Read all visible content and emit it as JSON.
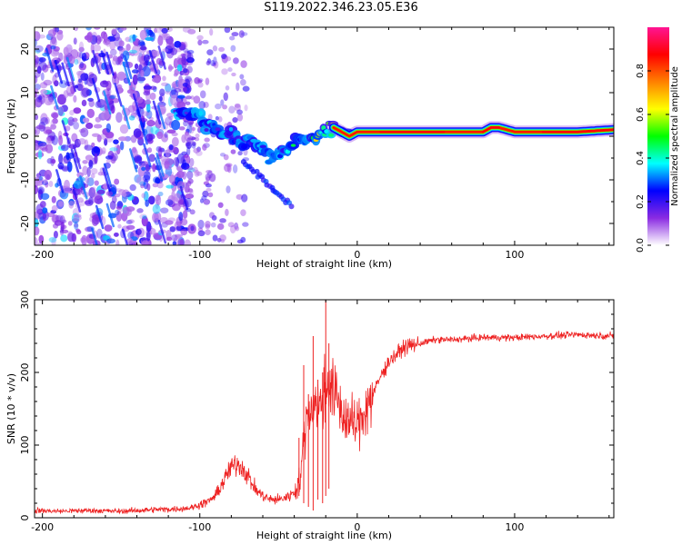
{
  "title": "S119.2022.346.23.05.E36",
  "colors": {
    "snr_line": "#ee2222",
    "rainbow": [
      "#ffffff",
      "#8a2be2",
      "#0000ff",
      "#00ffff",
      "#00ff00",
      "#ffff00",
      "#ff8000",
      "#ff0000",
      "#ff1493"
    ]
  },
  "chart_data": [
    {
      "type": "heatmap",
      "xlabel": "Height of straight line (km)",
      "ylabel": "Frequency (Hz)",
      "xlim": [
        -205,
        163
      ],
      "ylim": [
        -25,
        25
      ],
      "xticks": [
        -200,
        -100,
        0,
        100
      ],
      "xtick_labels": [
        "-200",
        "-100",
        "0",
        "100"
      ],
      "yticks": [
        -20,
        -10,
        0,
        10,
        20
      ],
      "ytick_labels": [
        "-20",
        "-10",
        "0",
        "10",
        "20"
      ],
      "colorbar": {
        "label": "Normalized spectral amplitude",
        "range": [
          0,
          1
        ],
        "ticks": [
          0.0,
          0.2,
          0.4,
          0.6,
          0.8
        ],
        "tick_labels": [
          "0.0",
          "0.2",
          "0.4",
          "0.6",
          "0.8"
        ]
      },
      "ridge": {
        "x": [
          -115,
          -105,
          -100,
          -95,
          -90,
          -85,
          -80,
          -75,
          -70,
          -65,
          -60,
          -55,
          -50,
          -45,
          -40,
          -35,
          -30,
          -25,
          -20,
          -15,
          -10,
          -5,
          0,
          10,
          20,
          40,
          60,
          80,
          85,
          90,
          100,
          110,
          120,
          140,
          163
        ],
        "freq": [
          5,
          5,
          4,
          3,
          2,
          1,
          0,
          -1,
          -1,
          -2,
          -3,
          -5,
          -4,
          -3,
          -2,
          -1,
          0,
          0,
          1,
          2,
          1,
          0,
          1,
          1,
          1,
          1,
          1,
          1,
          2,
          2,
          1,
          1,
          1,
          1,
          1.5
        ],
        "amplitude": [
          0.25,
          0.3,
          0.35,
          0.3,
          0.3,
          0.3,
          0.3,
          0.3,
          0.3,
          0.3,
          0.3,
          0.3,
          0.3,
          0.35,
          0.4,
          0.4,
          0.5,
          0.6,
          0.6,
          0.65,
          0.6,
          0.6,
          0.7,
          0.8,
          0.85,
          0.85,
          0.85,
          0.85,
          0.9,
          0.9,
          0.85,
          0.85,
          0.85,
          0.85,
          0.85
        ]
      }
    },
    {
      "type": "line",
      "xlabel": "Height of straight line (km)",
      "ylabel": "SNR (10 * v/v)",
      "xlim": [
        -205,
        163
      ],
      "ylim": [
        0,
        300
      ],
      "xticks": [
        -200,
        -100,
        0,
        100
      ],
      "xtick_labels": [
        "-200",
        "-100",
        "0",
        "100"
      ],
      "yticks": [
        0,
        100,
        200,
        300
      ],
      "ytick_labels": [
        "0",
        "100",
        "200",
        "300"
      ],
      "series": [
        {
          "x": [
            -205,
            -190,
            -170,
            -150,
            -130,
            -115,
            -105,
            -95,
            -90,
            -85,
            -80,
            -75,
            -70,
            -65,
            -60,
            -55,
            -50,
            -45,
            -40,
            -36,
            -33,
            -30,
            -27,
            -24,
            -21,
            -18,
            -15,
            -12,
            -9,
            -6,
            -3,
            0,
            5,
            10,
            15,
            20,
            25,
            30,
            40,
            50,
            60,
            80,
            100,
            120,
            140,
            163
          ],
          "y": [
            10,
            9,
            10,
            9,
            11,
            12,
            14,
            22,
            30,
            50,
            70,
            75,
            60,
            40,
            30,
            25,
            25,
            28,
            35,
            55,
            130,
            150,
            160,
            150,
            170,
            190,
            170,
            160,
            140,
            135,
            130,
            125,
            150,
            170,
            195,
            215,
            225,
            235,
            240,
            245,
            245,
            248,
            248,
            250,
            252,
            250
          ]
        }
      ],
      "spikes": {
        "x": [
          -37,
          -34,
          -31,
          -28,
          -25,
          -22,
          -20,
          -18
        ],
        "low": [
          30,
          20,
          15,
          10,
          25,
          20,
          30,
          40
        ],
        "high": [
          110,
          210,
          170,
          250,
          190,
          200,
          305,
          240
        ]
      }
    }
  ]
}
